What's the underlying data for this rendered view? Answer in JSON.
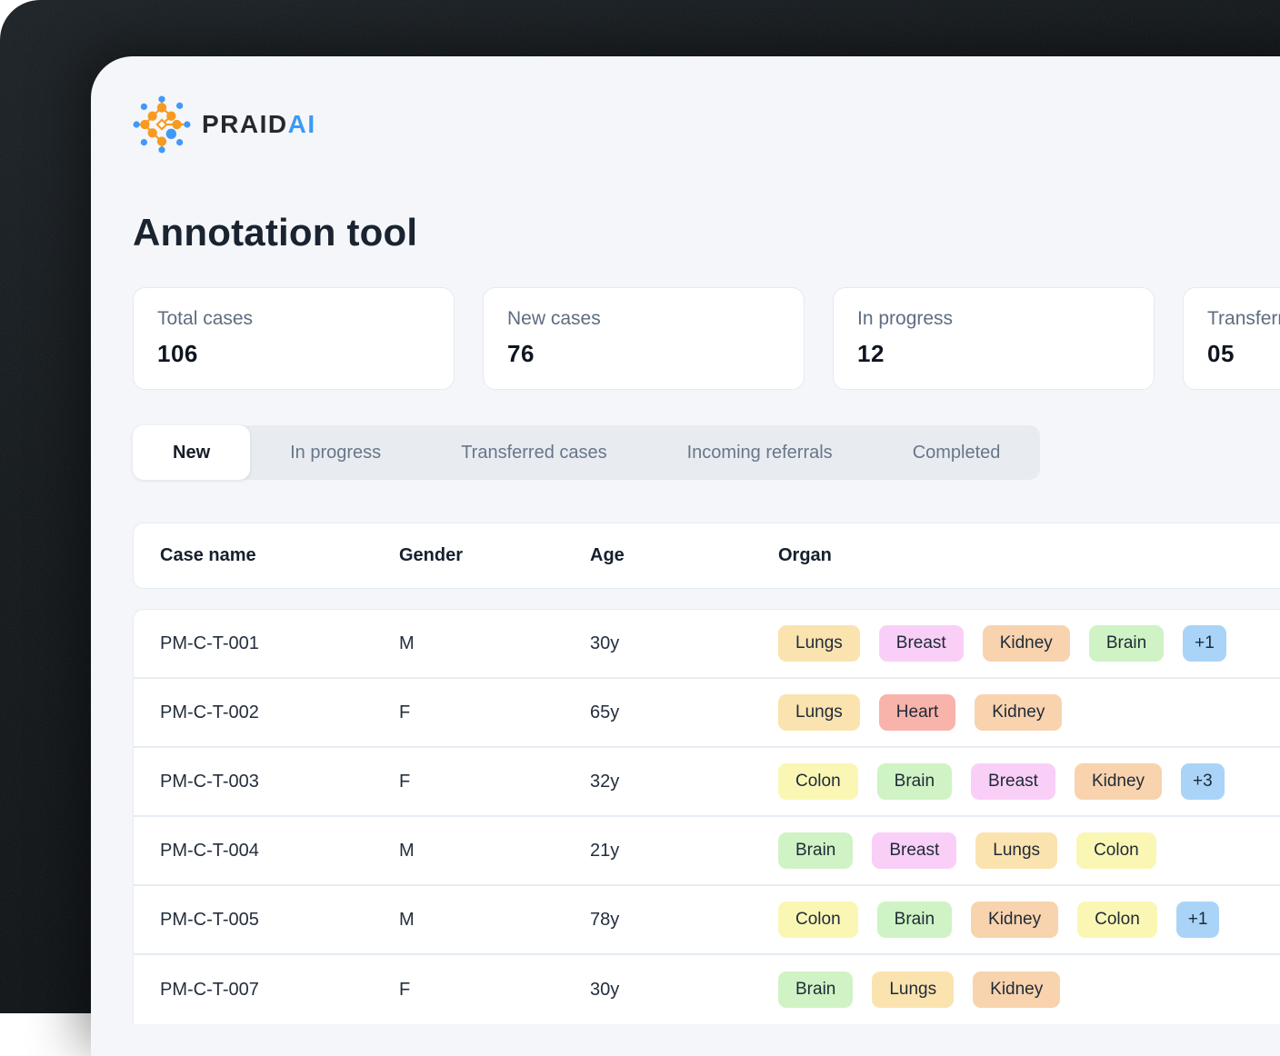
{
  "brand": {
    "wordmark_primary": "PRAID",
    "wordmark_accent": "AI",
    "accent_color": "#3B9AF8",
    "logo_orange": "#F79A1F",
    "logo_blue": "#4199F7"
  },
  "page": {
    "title": "Annotation tool"
  },
  "stats": [
    {
      "label": "Total cases",
      "value": "106"
    },
    {
      "label": "New cases",
      "value": "76"
    },
    {
      "label": "In progress",
      "value": "12"
    },
    {
      "label": "Transferred",
      "value": "05"
    }
  ],
  "tabs": [
    {
      "label": "New",
      "active": true
    },
    {
      "label": "In progress",
      "active": false
    },
    {
      "label": "Transferred cases",
      "active": false
    },
    {
      "label": "Incoming referrals",
      "active": false
    },
    {
      "label": "Completed",
      "active": false
    }
  ],
  "table": {
    "columns": [
      "Case name",
      "Gender",
      "Age",
      "Organ"
    ],
    "tag_colors": {
      "amber": "#FBE3AF",
      "pink": "#F9CFF7",
      "peach": "#F8D3AE",
      "green": "#CFF3C5",
      "yellow": "#FAF7B5",
      "salmon": "#F8B3AB",
      "blue": "#A9D4F7"
    },
    "rows": [
      {
        "case_name": "PM-C-T-001",
        "gender": "M",
        "age": "30y",
        "organs": [
          {
            "label": "Lungs",
            "color": "amber"
          },
          {
            "label": "Breast",
            "color": "pink"
          },
          {
            "label": "Kidney",
            "color": "peach"
          },
          {
            "label": "Brain",
            "color": "green"
          },
          {
            "label": "+1",
            "color": "blue",
            "more": true
          }
        ]
      },
      {
        "case_name": "PM-C-T-002",
        "gender": "F",
        "age": "65y",
        "organs": [
          {
            "label": "Lungs",
            "color": "amber"
          },
          {
            "label": "Heart",
            "color": "salmon"
          },
          {
            "label": "Kidney",
            "color": "peach"
          }
        ]
      },
      {
        "case_name": "PM-C-T-003",
        "gender": "F",
        "age": "32y",
        "organs": [
          {
            "label": "Colon",
            "color": "yellow"
          },
          {
            "label": "Brain",
            "color": "green"
          },
          {
            "label": "Breast",
            "color": "pink"
          },
          {
            "label": "Kidney",
            "color": "peach"
          },
          {
            "label": "+3",
            "color": "blue",
            "more": true
          }
        ]
      },
      {
        "case_name": "PM-C-T-004",
        "gender": "M",
        "age": "21y",
        "organs": [
          {
            "label": "Brain",
            "color": "green"
          },
          {
            "label": "Breast",
            "color": "pink"
          },
          {
            "label": "Lungs",
            "color": "amber"
          },
          {
            "label": "Colon",
            "color": "yellow"
          }
        ]
      },
      {
        "case_name": "PM-C-T-005",
        "gender": "M",
        "age": "78y",
        "organs": [
          {
            "label": "Colon",
            "color": "yellow"
          },
          {
            "label": "Brain",
            "color": "green"
          },
          {
            "label": "Kidney",
            "color": "peach"
          },
          {
            "label": "Colon",
            "color": "yellow"
          },
          {
            "label": "+1",
            "color": "blue",
            "more": true
          }
        ]
      },
      {
        "case_name": "PM-C-T-007",
        "gender": "F",
        "age": "30y",
        "organs": [
          {
            "label": "Brain",
            "color": "green"
          },
          {
            "label": "Lungs",
            "color": "amber"
          },
          {
            "label": "Kidney",
            "color": "peach"
          }
        ]
      }
    ]
  }
}
